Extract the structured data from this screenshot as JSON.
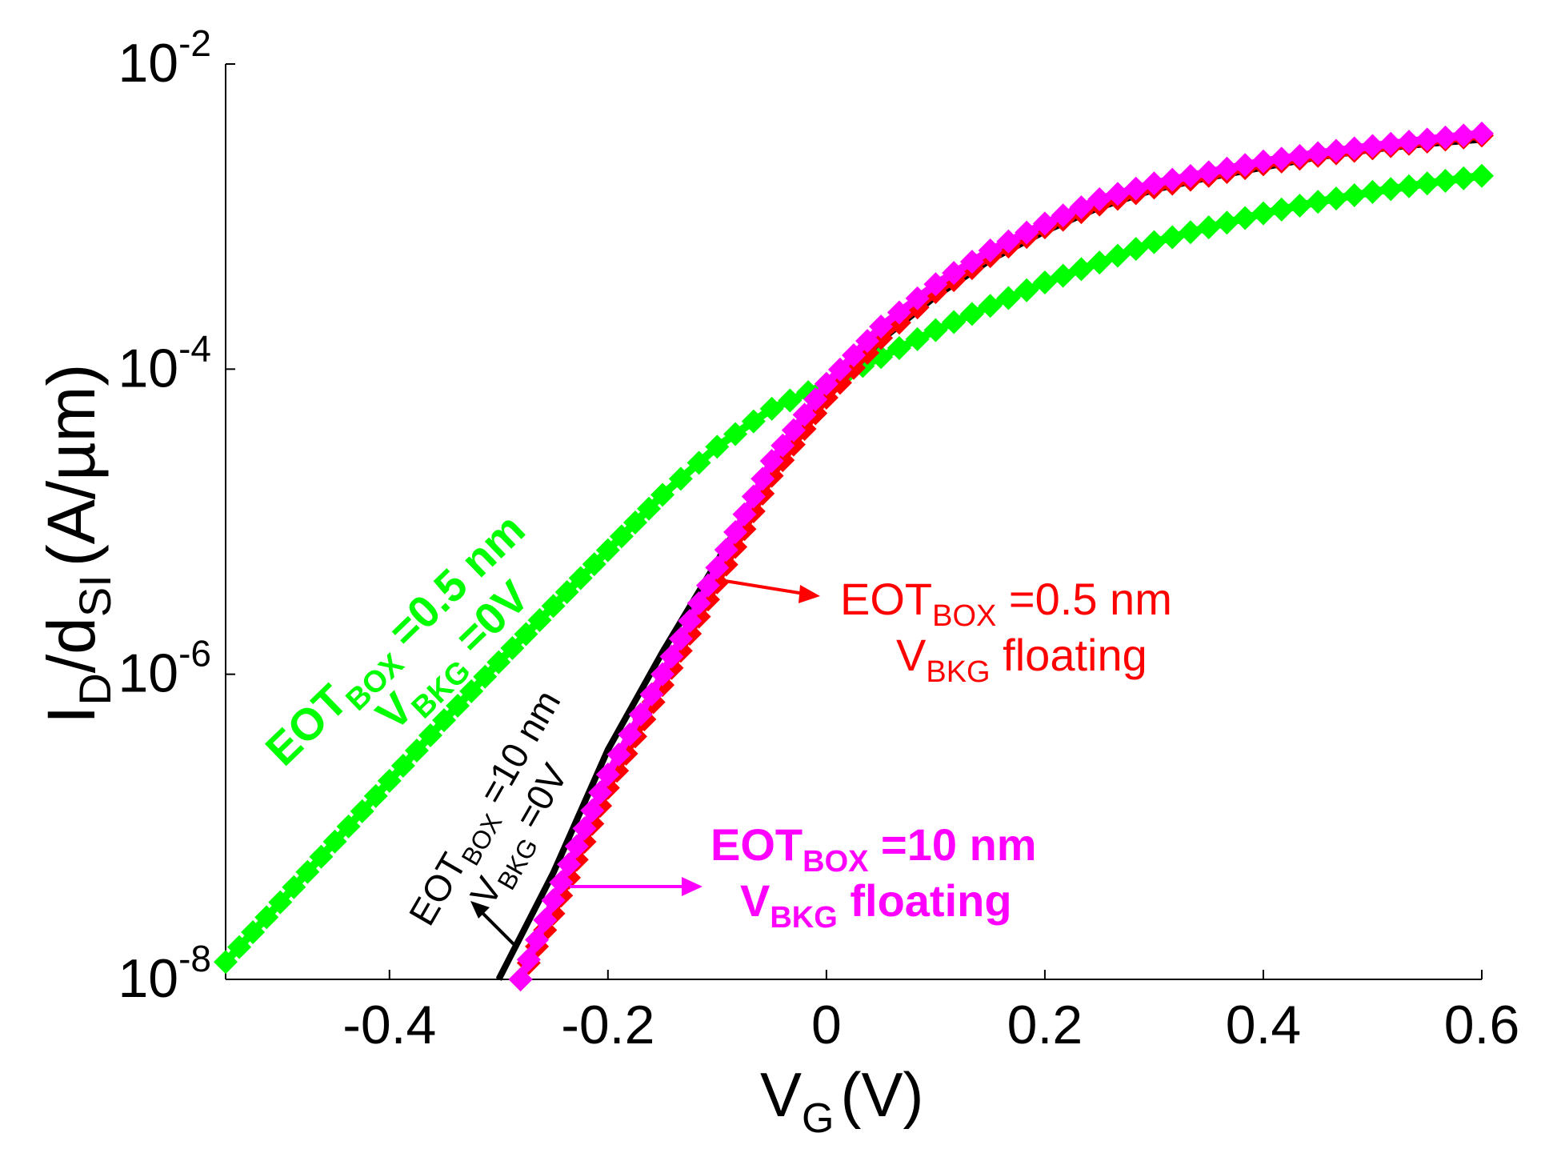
{
  "chart_data": {
    "type": "line",
    "title": "",
    "xlabel": "V",
    "xlabel_sub": "G",
    "xlabel_unit": "(V)",
    "ylabel_main": "I",
    "ylabel_sub1": "D",
    "ylabel_mid": "/d",
    "ylabel_sub2": "SI",
    "ylabel_unit": "(A/µm)",
    "xlim": [
      -0.55,
      0.6
    ],
    "ylim": [
      1e-08,
      0.01
    ],
    "yscale": "log",
    "x_ticks": [
      {
        "value": -0.4,
        "label": "-0.4"
      },
      {
        "value": -0.2,
        "label": "-0.2"
      },
      {
        "value": 0,
        "label": "0"
      },
      {
        "value": 0.2,
        "label": "0.2"
      },
      {
        "value": 0.4,
        "label": "0.4"
      },
      {
        "value": 0.6,
        "label": "0.6"
      }
    ],
    "y_ticks": [
      {
        "value": 1e-08,
        "base": "10",
        "exp": "-8"
      },
      {
        "value": 1e-06,
        "base": "10",
        "exp": "-6"
      },
      {
        "value": 0.0001,
        "base": "10",
        "exp": "-4"
      },
      {
        "value": 0.01,
        "base": "10",
        "exp": "-2"
      }
    ],
    "series": [
      {
        "name": "EOTBOX =0.5 nm VBKG =0V",
        "color": "#00ff00",
        "marker": "diamond",
        "x": [
          -0.55,
          -0.5,
          -0.45,
          -0.4,
          -0.35,
          -0.3,
          -0.25,
          -0.2,
          -0.15,
          -0.1,
          -0.05,
          0,
          0.05,
          0.1,
          0.15,
          0.2,
          0.25,
          0.3,
          0.35,
          0.4,
          0.45,
          0.5,
          0.55,
          0.6
        ],
        "y": [
          1.3e-08,
          3.2e-08,
          8e-08,
          2e-07,
          5e-07,
          1.2e-06,
          2.8e-06,
          6.5e-06,
          1.5e-05,
          3.1e-05,
          5.5e-05,
          8e-05,
          0.00012,
          0.00018,
          0.00026,
          0.00037,
          0.0005,
          0.00068,
          0.00085,
          0.00105,
          0.00125,
          0.00145,
          0.00165,
          0.00185
        ]
      },
      {
        "name": "EOTBOX =0.5 nm VBKG floating",
        "color": "#ff0000",
        "marker": "diamond",
        "x": [
          -0.28,
          -0.25,
          -0.2,
          -0.15,
          -0.1,
          -0.05,
          0,
          0.05,
          0.1,
          0.15,
          0.2,
          0.25,
          0.3,
          0.35,
          0.4,
          0.45,
          0.5,
          0.55,
          0.6
        ],
        "y": [
          1e-08,
          2.7e-08,
          1.8e-07,
          8.5e-07,
          4e-06,
          2e-05,
          6.5e-05,
          0.00016,
          0.00032,
          0.00055,
          0.00085,
          0.0012,
          0.00155,
          0.00185,
          0.0022,
          0.0025,
          0.0028,
          0.0031,
          0.0034
        ]
      },
      {
        "name": "EOTBOX =10 nm VBKG =0V",
        "color": "#000000",
        "marker": "none",
        "x": [
          -0.3,
          -0.25,
          -0.2,
          -0.15,
          -0.1,
          -0.05,
          0,
          0.05,
          0.1,
          0.15,
          0.2,
          0.25,
          0.3,
          0.35,
          0.4,
          0.45,
          0.5,
          0.55,
          0.6
        ],
        "y": [
          1e-08,
          5e-08,
          3.2e-07,
          1.4e-06,
          5.5e-06,
          2.2e-05,
          6.5e-05,
          0.000155,
          0.0003,
          0.00052,
          0.0008,
          0.00115,
          0.0015,
          0.0018,
          0.0021,
          0.00245,
          0.00275,
          0.003,
          0.0032
        ]
      },
      {
        "name": "EOTBOX =10 nm VBKG floating",
        "color": "#ff00ff",
        "marker": "diamond",
        "x": [
          -0.28,
          -0.25,
          -0.2,
          -0.15,
          -0.1,
          -0.05,
          0,
          0.05,
          0.1,
          0.15,
          0.2,
          0.25,
          0.3,
          0.35,
          0.4,
          0.45,
          0.5,
          0.55,
          0.6
        ],
        "y": [
          1e-08,
          3.3e-08,
          2.2e-07,
          1e-06,
          5e-06,
          2.5e-05,
          8e-05,
          0.00019,
          0.00036,
          0.0006,
          0.0009,
          0.0013,
          0.00165,
          0.00195,
          0.0023,
          0.0026,
          0.0029,
          0.0032,
          0.0035
        ]
      }
    ],
    "annotations": [
      {
        "id": "green",
        "base": "EOT",
        "sub": "BOX",
        "rest": " =0.5 nm",
        "line2_base": "V",
        "line2_sub": "BKG",
        "line2_rest": " =0V",
        "color": "#00ff00"
      },
      {
        "id": "red",
        "base": "EOT",
        "sub": "BOX",
        "rest": " =0.5 nm",
        "line2_base": "V",
        "line2_sub": "BKG",
        "line2_rest": " floating",
        "color": "#ff0000"
      },
      {
        "id": "black",
        "base": "EOT",
        "sub": "BOX",
        "rest": " =10 nm",
        "line2_base": "V",
        "line2_sub": "BKG",
        "line2_rest": " =0V",
        "color": "#000000"
      },
      {
        "id": "magenta",
        "base": "EOT",
        "sub": "BOX",
        "rest": " =10 nm",
        "line2_base": "V",
        "line2_sub": "BKG",
        "line2_rest": " floating",
        "color": "#ff00ff"
      }
    ]
  }
}
